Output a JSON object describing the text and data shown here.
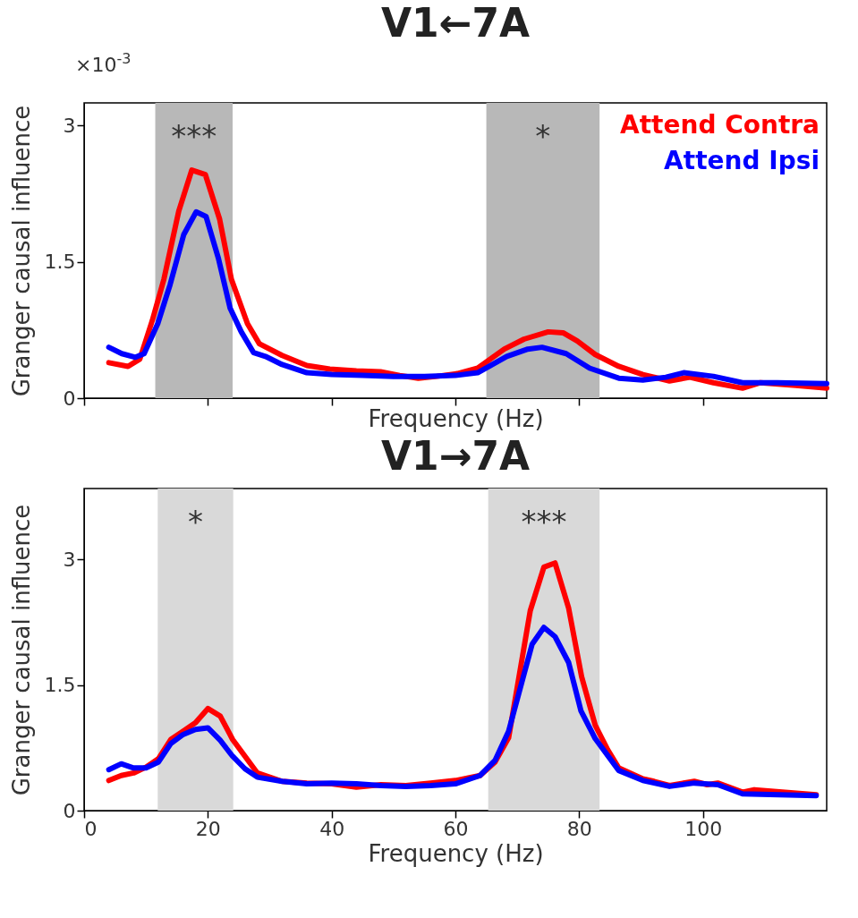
{
  "chart_data": [
    {
      "type": "line",
      "title": "V1←7A",
      "xlabel": "Frequency (Hz)",
      "ylabel": "Granger causal influence",
      "xlim": [
        0,
        120
      ],
      "xticks": [
        0,
        20,
        40,
        60,
        80,
        100
      ],
      "ylim": [
        0,
        3.25
      ],
      "yticks": [
        0,
        1.5,
        3
      ],
      "tick_labels": "y",
      "legend": "top right",
      "bands": [
        {
          "axis": "x",
          "from": 11.5,
          "to": 24,
          "color": "#b8b8b8"
        },
        {
          "axis": "x",
          "from": 65,
          "to": 83.3,
          "color": "#b8b8b8"
        }
      ],
      "annotations": [
        "×10$^{-3}$",
        "***",
        "*"
      ],
      "series": [
        {
          "name": "Attend Contra",
          "color": "#ff0000",
          "x": [
            4,
            7.1,
            9,
            11,
            12.9,
            15.3,
            17.4,
            19.6,
            21.9,
            23.8,
            26.4,
            28.3,
            32,
            36,
            39.7,
            44,
            47.9,
            51,
            54,
            57,
            60.3,
            63.6,
            67.9,
            71.1,
            75,
            77.4,
            79.7,
            82.6,
            86.4,
            90.3,
            94.6,
            97.9,
            101.7,
            106.4,
            109.3,
            115,
            120
          ],
          "values": [
            0.39,
            0.35,
            0.43,
            0.85,
            1.31,
            2.06,
            2.51,
            2.46,
            1.97,
            1.31,
            0.82,
            0.6,
            0.47,
            0.36,
            0.32,
            0.3,
            0.29,
            0.25,
            0.22,
            0.24,
            0.27,
            0.33,
            0.54,
            0.65,
            0.73,
            0.72,
            0.63,
            0.48,
            0.35,
            0.26,
            0.19,
            0.23,
            0.17,
            0.11,
            0.17,
            0.14,
            0.11
          ]
        },
        {
          "name": "Attend Ipsi",
          "color": "#0000ff",
          "x": [
            4,
            6.1,
            8.3,
            9.7,
            11.9,
            13.9,
            16.1,
            18.1,
            19.7,
            21.7,
            23.6,
            25.4,
            27.4,
            29.3,
            32,
            36,
            40,
            45,
            50,
            55,
            60,
            63.6,
            68.3,
            71.7,
            74,
            77.9,
            81.7,
            86.4,
            90.3,
            94,
            96.9,
            101.7,
            106.4,
            112,
            120
          ],
          "values": [
            0.56,
            0.49,
            0.45,
            0.49,
            0.82,
            1.25,
            1.8,
            2.05,
            2.0,
            1.54,
            0.99,
            0.73,
            0.5,
            0.46,
            0.37,
            0.28,
            0.26,
            0.25,
            0.24,
            0.24,
            0.25,
            0.28,
            0.46,
            0.54,
            0.56,
            0.49,
            0.33,
            0.22,
            0.2,
            0.23,
            0.28,
            0.24,
            0.17,
            0.17,
            0.16
          ]
        }
      ]
    },
    {
      "type": "line",
      "title": "V1→7A",
      "xlabel": "Frequency (Hz)",
      "ylabel": "Granger causal influence",
      "xlim": [
        0,
        120
      ],
      "xticks": [
        0,
        20,
        40,
        60,
        80,
        100
      ],
      "ylim": [
        0,
        3.85
      ],
      "yticks": [
        0,
        1.5,
        3
      ],
      "bands": [
        {
          "axis": "x",
          "from": 11.9,
          "to": 24.1,
          "color": "#d9d9d9"
        },
        {
          "axis": "x",
          "from": 65.3,
          "to": 83.3,
          "color": "#d9d9d9"
        }
      ],
      "annotations": [
        "*",
        "***"
      ],
      "series": [
        {
          "color": "#ff0000",
          "x": [
            4,
            6,
            8,
            10,
            12,
            14,
            16,
            18,
            20,
            22,
            24,
            26,
            28,
            30,
            32,
            36,
            40,
            44,
            48,
            52,
            56,
            60,
            64,
            66.4,
            68.6,
            72.1,
            74.3,
            76.1,
            78.3,
            80.4,
            82.6,
            84.6,
            86.4,
            90.3,
            92.1,
            94.6,
            98.6,
            100.7,
            102.4,
            106.4,
            108.3,
            118.3
          ],
          "values": [
            0.36,
            0.42,
            0.45,
            0.52,
            0.62,
            0.85,
            0.95,
            1.05,
            1.22,
            1.13,
            0.85,
            0.65,
            0.45,
            0.4,
            0.35,
            0.33,
            0.32,
            0.28,
            0.31,
            0.3,
            0.33,
            0.36,
            0.42,
            0.58,
            0.87,
            2.39,
            2.91,
            2.96,
            2.42,
            1.6,
            1.02,
            0.73,
            0.51,
            0.38,
            0.35,
            0.3,
            0.35,
            0.31,
            0.33,
            0.22,
            0.25,
            0.19
          ]
        },
        {
          "color": "#0000ff",
          "x": [
            4,
            6,
            8,
            10,
            12,
            14,
            16,
            18,
            20,
            22,
            24,
            26,
            28,
            32,
            36,
            40,
            44,
            48,
            52,
            56,
            60,
            64,
            66.4,
            68.6,
            72.4,
            74.3,
            76.1,
            78.3,
            80.3,
            82.6,
            86.4,
            90.3,
            94.6,
            98.6,
            102.4,
            106.4,
            118.3
          ],
          "values": [
            0.49,
            0.56,
            0.51,
            0.51,
            0.58,
            0.8,
            0.91,
            0.97,
            0.99,
            0.84,
            0.65,
            0.5,
            0.4,
            0.35,
            0.32,
            0.33,
            0.32,
            0.3,
            0.29,
            0.3,
            0.32,
            0.42,
            0.6,
            0.95,
            1.99,
            2.19,
            2.08,
            1.77,
            1.19,
            0.86,
            0.48,
            0.36,
            0.29,
            0.33,
            0.31,
            0.2,
            0.18
          ]
        }
      ]
    }
  ]
}
